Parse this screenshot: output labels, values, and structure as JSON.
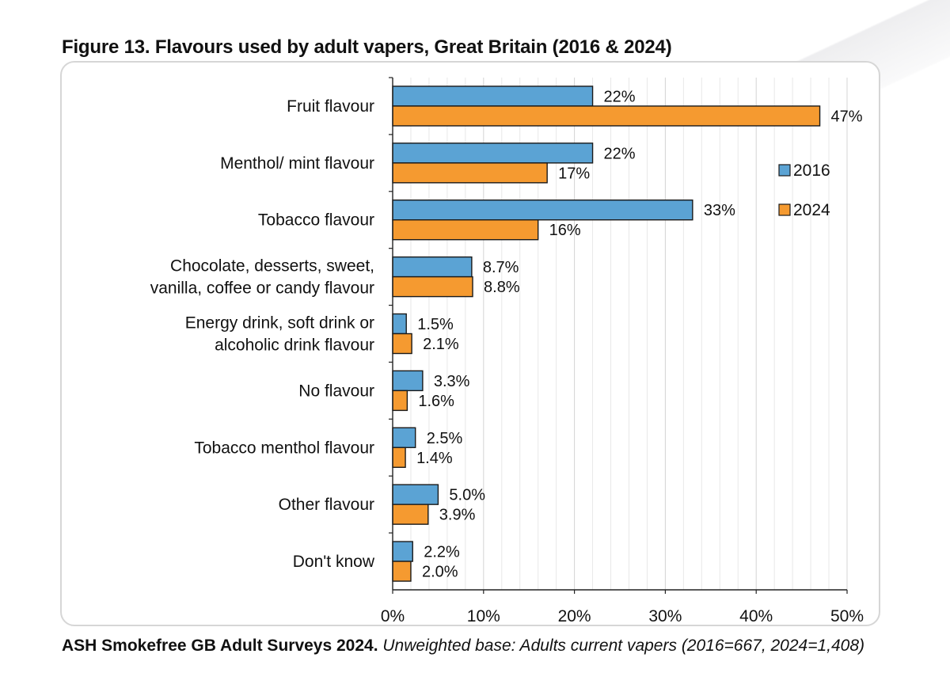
{
  "figure": {
    "title": "Figure 13. Flavours used by adult vapers, Great Britain (2016 & 2024)",
    "source": "ASH Smokefree GB Adult Surveys 2024.",
    "base_note": "Unweighted base: Adults current vapers (2016=667, 2024=1,408)"
  },
  "chart_data": {
    "type": "bar",
    "orientation": "horizontal",
    "categories": [
      [
        "Fruit flavour"
      ],
      [
        "Menthol/ mint flavour"
      ],
      [
        "Tobacco flavour"
      ],
      [
        "Chocolate, desserts, sweet,",
        "vanilla, coffee or candy flavour"
      ],
      [
        "Energy drink, soft drink or",
        "alcoholic drink flavour"
      ],
      [
        "No flavour"
      ],
      [
        "Tobacco menthol flavour"
      ],
      [
        "Other flavour"
      ],
      [
        "Don't know"
      ]
    ],
    "series": [
      {
        "name": "2016",
        "color": "#5ba3d4",
        "values": [
          22,
          22,
          33,
          8.7,
          1.5,
          3.3,
          2.5,
          5.0,
          2.2
        ],
        "labels": [
          "22%",
          "22%",
          "33%",
          "8.7%",
          "1.5%",
          "3.3%",
          "2.5%",
          "5.0%",
          "2.2%"
        ]
      },
      {
        "name": "2024",
        "color": "#f59a30",
        "values": [
          47,
          17,
          16,
          8.8,
          2.1,
          1.6,
          1.4,
          3.9,
          2.0
        ],
        "labels": [
          "47%",
          "17%",
          "16%",
          "8.8%",
          "2.1%",
          "1.6%",
          "1.4%",
          "3.9%",
          "2.0%"
        ]
      }
    ],
    "xlim": [
      0,
      50
    ],
    "ticks": [
      0,
      10,
      20,
      30,
      40,
      50
    ],
    "tick_labels": [
      "0%",
      "10%",
      "20%",
      "30%",
      "40%",
      "50%"
    ],
    "grid": "vertical",
    "legend_position": "right"
  }
}
